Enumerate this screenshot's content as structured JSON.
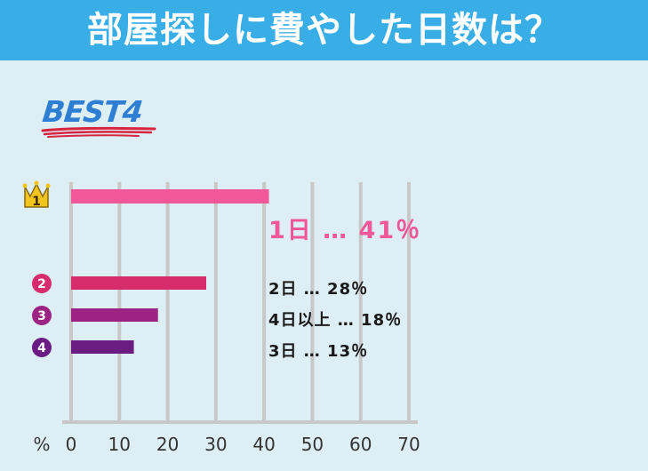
{
  "title": "部屋探しに費やした日数は？",
  "badge": "BEST4",
  "colors": {
    "header": "#39aee6",
    "background": "#ddeef5",
    "badge_text": "#2e7fd3",
    "badge_underline": "#d9243f",
    "grid": "#c8c8c8",
    "rank_1": "#f0589a",
    "rank_2": "#d72c6c",
    "rank_3": "#9c2384",
    "rank_4": "#6a1c83",
    "crown": "#f2c51c"
  },
  "chart_data": {
    "type": "bar",
    "orientation": "horizontal",
    "unit_label": "%",
    "xlim": [
      0,
      70
    ],
    "ticks": [
      "0",
      "10",
      "20",
      "30",
      "40",
      "50",
      "60",
      "70"
    ],
    "grid": true,
    "categories": [
      "1日",
      "2日",
      "4日以上",
      "3日"
    ],
    "values": [
      41,
      28,
      18,
      13
    ],
    "ranks": [
      "1",
      "2",
      "3",
      "4"
    ],
    "labels": [
      "1日 … 41％",
      "2日 … 28％",
      "4日以上 … 18％",
      "3日 … 13％"
    ]
  }
}
